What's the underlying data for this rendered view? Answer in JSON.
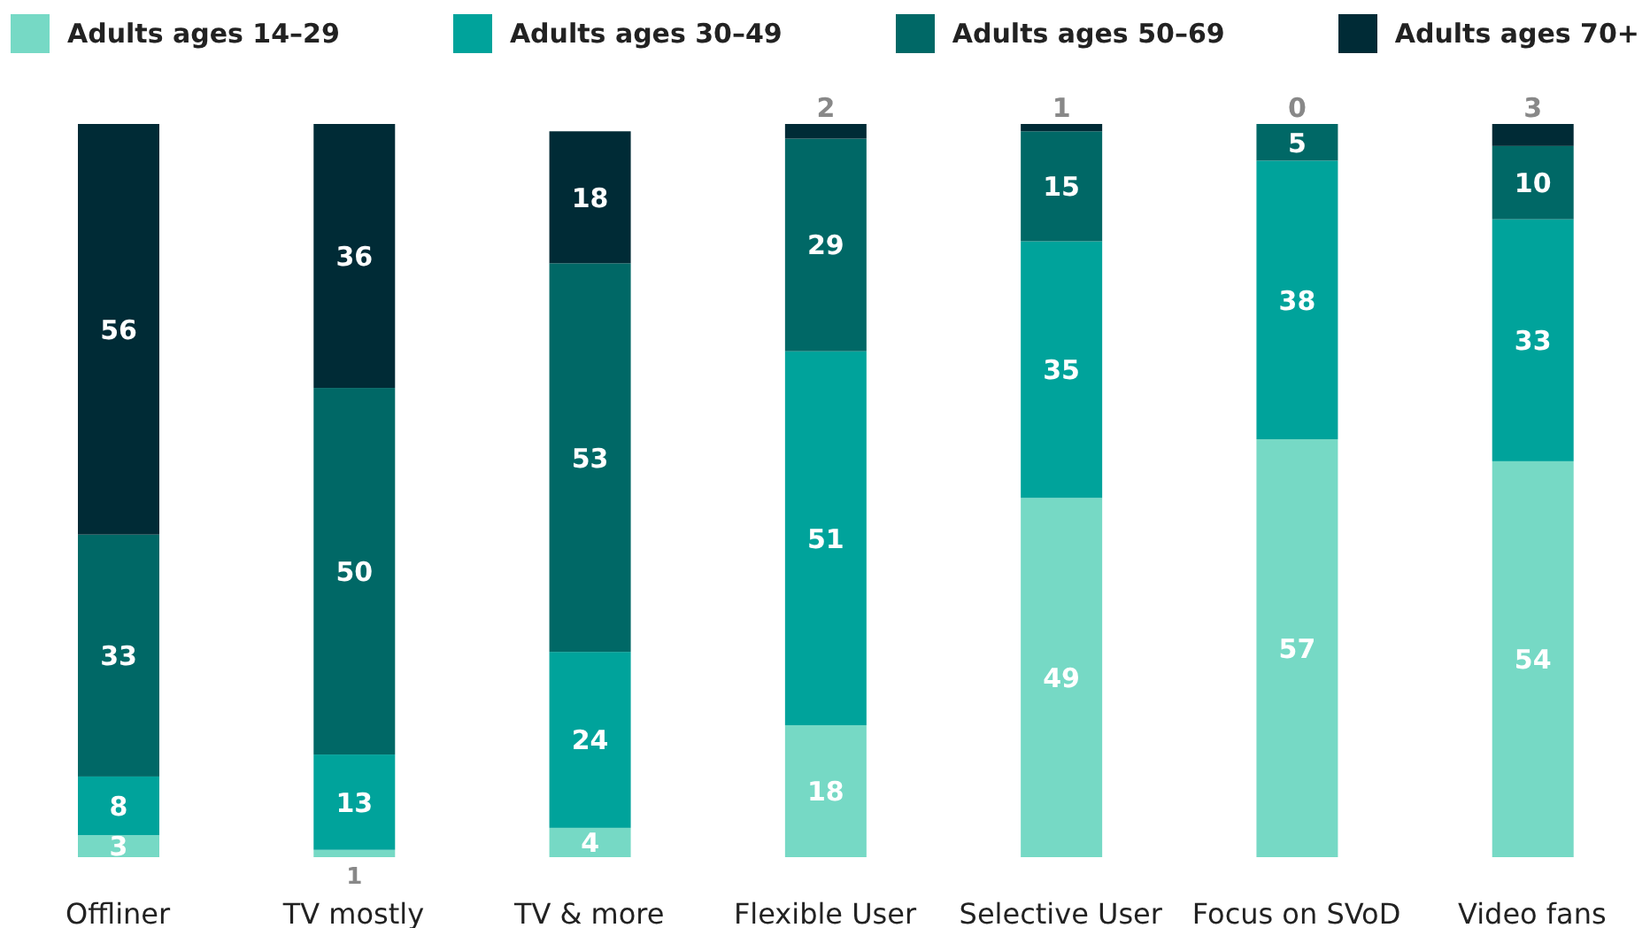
{
  "chart_data": {
    "type": "bar",
    "stacked": true,
    "data_labels": true,
    "legend": "top",
    "grid": false,
    "categories": [
      "Offliner",
      "TV mostly",
      "TV & more",
      "Flexible User",
      "Selective User",
      "Focus on SVoD",
      "Video fans"
    ],
    "series": [
      {
        "name": "Adults ages 14–29",
        "color": "#76d9c5",
        "values": [
          3,
          1,
          4,
          18,
          49,
          57,
          54
        ]
      },
      {
        "name": "Adults ages 30–49",
        "color": "#00a39b",
        "values": [
          8,
          13,
          24,
          51,
          35,
          38,
          33
        ]
      },
      {
        "name": "Adults ages 50–69",
        "color": "#006866",
        "values": [
          33,
          50,
          53,
          29,
          15,
          5,
          10
        ]
      },
      {
        "name": "Adults ages 70+",
        "color": "#002b36",
        "values": [
          56,
          36,
          18,
          2,
          1,
          0,
          3
        ]
      }
    ]
  }
}
